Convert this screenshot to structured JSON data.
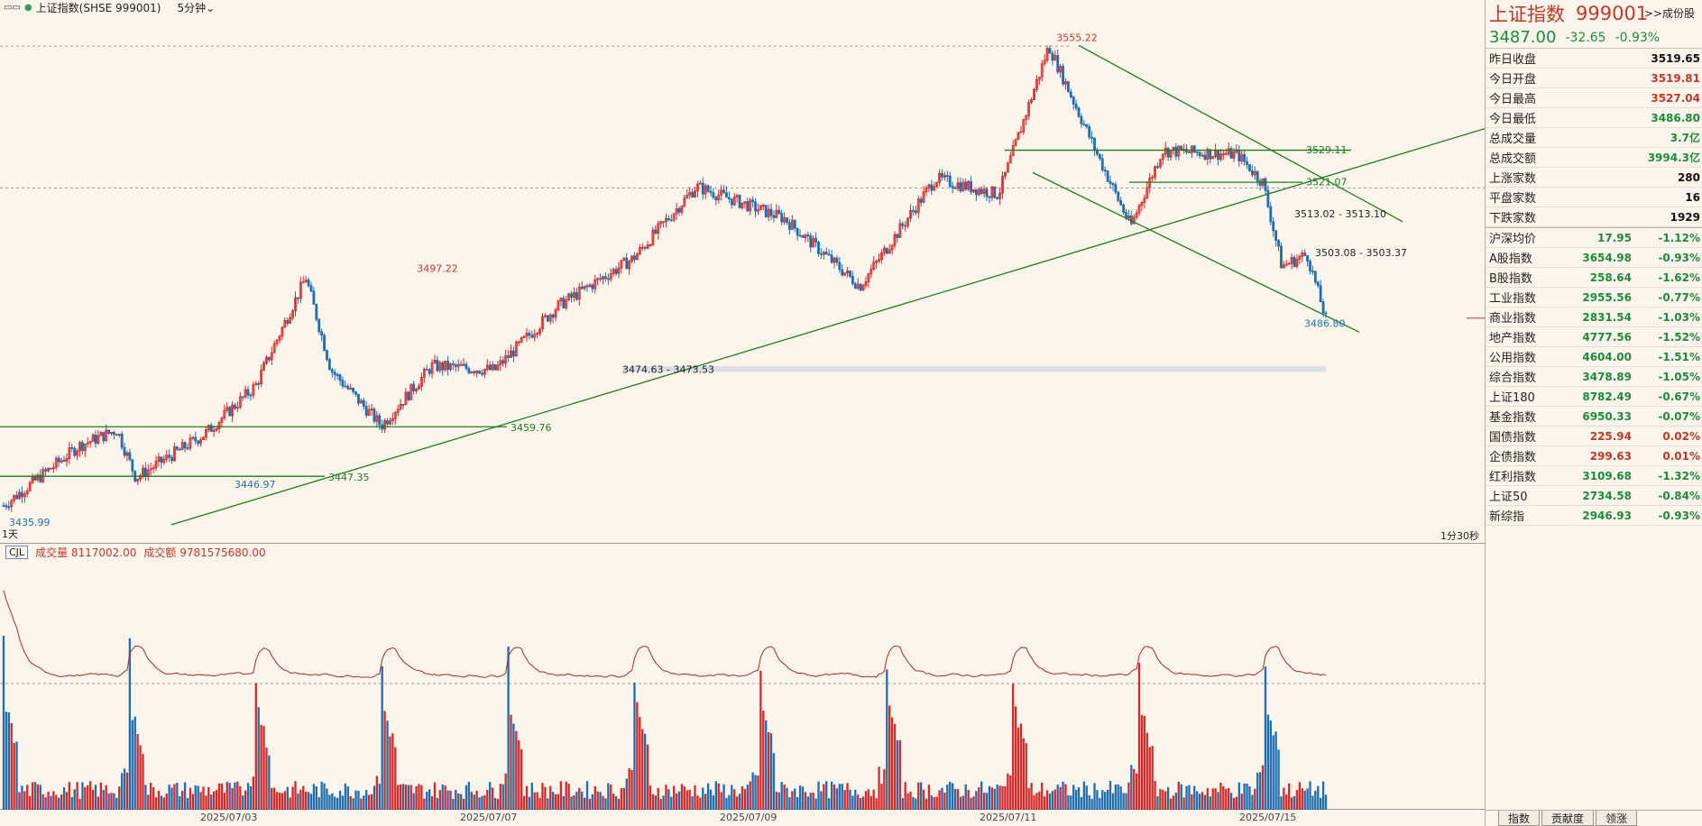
{
  "topbar": {
    "title": "上证指数(SHSE 999001)",
    "timeframe": "5分钟",
    "chevron_icon": "chevron-down-icon"
  },
  "chart": {
    "left_marker": "1天",
    "low_left_label": "3435.99",
    "right_marker": "1分30秒",
    "annotations": {
      "high_main": "3555.22",
      "high_left": "3497.22",
      "level_3529": "3529.11",
      "level_3521": "3521.07",
      "level_3513": "3513.02 - 3513.10",
      "level_3503": "3503.08 - 3503.37",
      "low_right": "3486.80",
      "level_3474": "3474.63 - 3473.53",
      "level_3459": "3459.76",
      "level_3447": "3447.35",
      "low_mid": "3446.97"
    },
    "colors": {
      "up": "#d42a2a",
      "down": "#1f6fb0",
      "trend": "#1e7a1e",
      "ma_line": "#a52a2a"
    }
  },
  "volume": {
    "indicator": "CJL",
    "vol_label": "成交量 8117002.00",
    "amount_label": "成交额 9781575680.00"
  },
  "chart_data": {
    "type": "candlestick",
    "x_tick_labels": [
      "2025/07/03",
      "2025/07/07",
      "2025/07/09",
      "2025/07/11",
      "2025/07/15"
    ],
    "price_range": [
      3435.99,
      3555.22
    ],
    "price_levels": [
      3555.22,
      3529.11,
      3521.07,
      3513.1,
      3503.37,
      3497.22,
      3486.8,
      3474.63,
      3459.76,
      3447.35,
      3446.97,
      3435.99
    ],
    "anchors": [
      {
        "session": 0,
        "price": 3440
      },
      {
        "session": 0.6,
        "price": 3455
      },
      {
        "session": 0.9,
        "price": 3459
      },
      {
        "session": 1.05,
        "price": 3446.97
      },
      {
        "session": 1.6,
        "price": 3458
      },
      {
        "session": 2.0,
        "price": 3470
      },
      {
        "session": 2.4,
        "price": 3497.22
      },
      {
        "session": 2.6,
        "price": 3474
      },
      {
        "session": 3.0,
        "price": 3460
      },
      {
        "session": 3.4,
        "price": 3475
      },
      {
        "session": 3.9,
        "price": 3474
      },
      {
        "session": 4.4,
        "price": 3490
      },
      {
        "session": 5.0,
        "price": 3502
      },
      {
        "session": 5.5,
        "price": 3520
      },
      {
        "session": 6.2,
        "price": 3512
      },
      {
        "session": 6.8,
        "price": 3495
      },
      {
        "session": 7.4,
        "price": 3522
      },
      {
        "session": 7.9,
        "price": 3518
      },
      {
        "session": 8.3,
        "price": 3555.22
      },
      {
        "session": 8.7,
        "price": 3527
      },
      {
        "session": 8.95,
        "price": 3510
      },
      {
        "session": 9.2,
        "price": 3529
      },
      {
        "session": 9.8,
        "price": 3528
      },
      {
        "session": 10.0,
        "price": 3521
      },
      {
        "session": 10.15,
        "price": 3500
      },
      {
        "session": 10.35,
        "price": 3503
      },
      {
        "session": 10.5,
        "price": 3486.8
      }
    ],
    "sessions_total": 10.5
  },
  "side": {
    "name": "上证指数",
    "code": "999001",
    "link": ">>成份股",
    "price": "3487.00",
    "change": "-32.65",
    "change_pct": "-0.93%",
    "stats": [
      {
        "label": "昨日收盘",
        "value": "3519.65",
        "color": "black"
      },
      {
        "label": "今日开盘",
        "value": "3519.81",
        "color": "red"
      },
      {
        "label": "今日最高",
        "value": "3527.04",
        "color": "red"
      },
      {
        "label": "今日最低",
        "value": "3486.80",
        "color": "green"
      },
      {
        "label": "总成交量",
        "value": "3.7亿",
        "color": "green"
      },
      {
        "label": "总成交额",
        "value": "3994.3亿",
        "color": "green"
      }
    ],
    "breadth": [
      {
        "label": "上涨家数",
        "value": "280",
        "color": "black"
      },
      {
        "label": "平盘家数",
        "value": "16",
        "color": "black"
      },
      {
        "label": "下跌家数",
        "value": "1929",
        "color": "black"
      }
    ],
    "indices": [
      {
        "name": "沪深均价",
        "price": "17.95",
        "chg": "-1.12%",
        "color": "green"
      },
      {
        "name": "A股指数",
        "price": "3654.98",
        "chg": "-0.93%",
        "color": "green"
      },
      {
        "name": "B股指数",
        "price": "258.64",
        "chg": "-1.62%",
        "color": "green"
      },
      {
        "name": "工业指数",
        "price": "2955.56",
        "chg": "-0.77%",
        "color": "green"
      },
      {
        "name": "商业指数",
        "price": "2831.54",
        "chg": "-1.03%",
        "color": "green"
      },
      {
        "name": "地产指数",
        "price": "4777.56",
        "chg": "-1.52%",
        "color": "green"
      },
      {
        "name": "公用指数",
        "price": "4604.00",
        "chg": "-1.51%",
        "color": "green"
      },
      {
        "name": "综合指数",
        "price": "3478.89",
        "chg": "-1.05%",
        "color": "green"
      },
      {
        "name": "上证180",
        "price": "8782.49",
        "chg": "-0.67%",
        "color": "green"
      },
      {
        "name": "基金指数",
        "price": "6950.33",
        "chg": "-0.07%",
        "color": "green"
      },
      {
        "name": "国债指数",
        "price": "225.94",
        "chg": "0.02%",
        "color": "red"
      },
      {
        "name": "企债指数",
        "price": "299.63",
        "chg": "0.01%",
        "color": "red"
      },
      {
        "name": "红利指数",
        "price": "3109.68",
        "chg": "-1.32%",
        "color": "green"
      },
      {
        "name": "上证50",
        "price": "2734.58",
        "chg": "-0.84%",
        "color": "green"
      },
      {
        "name": "新综指",
        "price": "2946.93",
        "chg": "-0.93%",
        "color": "green"
      }
    ],
    "tabs": [
      "指数",
      "贡献度",
      "领涨"
    ]
  }
}
